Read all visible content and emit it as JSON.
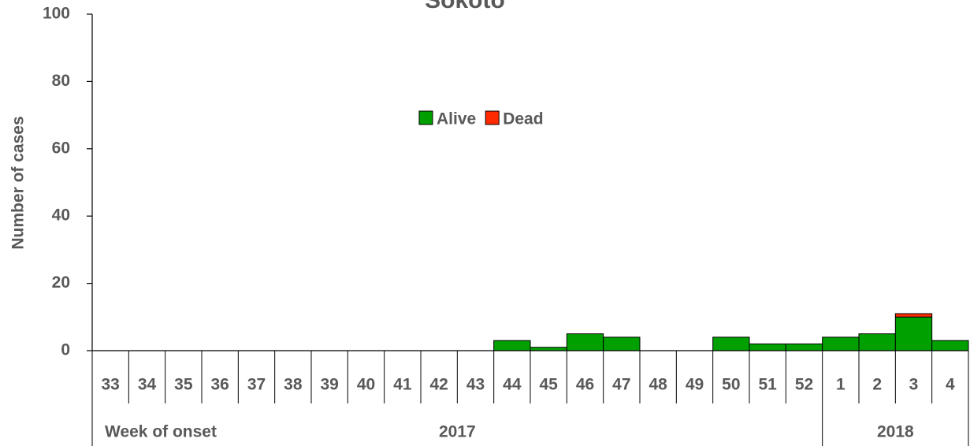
{
  "chart_data": {
    "type": "bar",
    "stacked": true,
    "title": "Sokoto",
    "ylabel": "Number of cases",
    "xlabel": "Week of onset",
    "categories": [
      "33",
      "34",
      "35",
      "36",
      "37",
      "38",
      "39",
      "40",
      "41",
      "42",
      "43",
      "44",
      "45",
      "46",
      "47",
      "48",
      "49",
      "50",
      "51",
      "52",
      "1",
      "2",
      "3",
      "4"
    ],
    "groups": [
      {
        "label": "2017",
        "count": 20
      },
      {
        "label": "2018",
        "count": 4
      }
    ],
    "series": [
      {
        "name": "Alive",
        "color": "#00a000",
        "values": [
          0,
          0,
          0,
          0,
          0,
          0,
          0,
          0,
          0,
          0,
          0,
          3,
          1,
          5,
          4,
          0,
          0,
          4,
          2,
          2,
          4,
          5,
          10,
          3
        ]
      },
      {
        "name": "Dead",
        "color": "#ff2a00",
        "values": [
          0,
          0,
          0,
          0,
          0,
          0,
          0,
          0,
          0,
          0,
          0,
          0,
          0,
          0,
          0,
          0,
          0,
          0,
          0,
          0,
          0,
          0,
          1,
          0
        ]
      }
    ],
    "ylim": [
      0,
      100
    ],
    "yticks": [
      0,
      20,
      40,
      60,
      80,
      100
    ],
    "legend": "top-center"
  }
}
